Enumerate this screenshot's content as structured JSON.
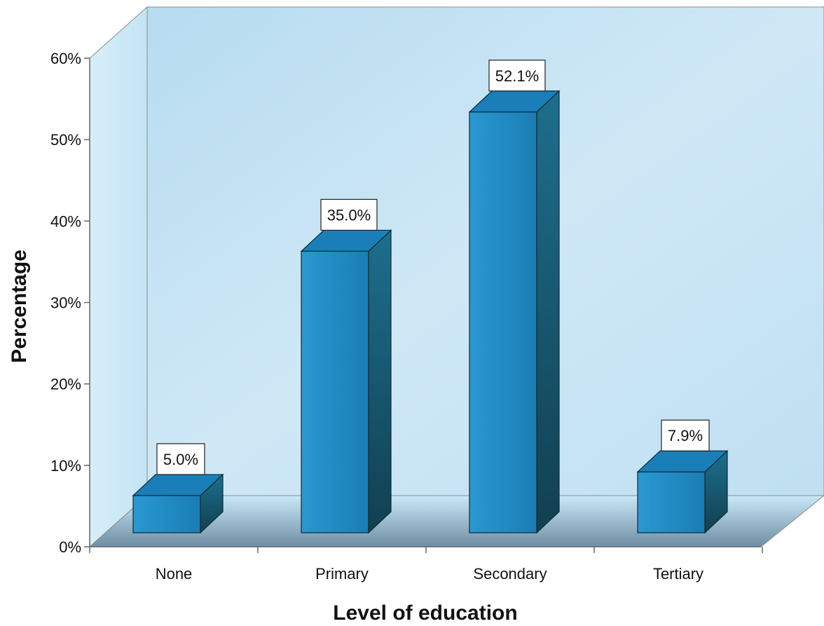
{
  "chart_data": {
    "type": "bar",
    "categories": [
      "None",
      "Primary",
      "Secondary",
      "Tertiary"
    ],
    "values": [
      5.0,
      35.0,
      52.1,
      7.9
    ],
    "data_labels": [
      "5.0%",
      "35.0%",
      "52.1%",
      "7.9%"
    ],
    "xlabel": "Level of education",
    "ylabel": "Percentage",
    "ylim": [
      0,
      60
    ],
    "yticks": [
      "0%",
      "10%",
      "20%",
      "30%",
      "40%",
      "50%",
      "60%"
    ],
    "grid": false,
    "legend": "none",
    "colors": {
      "bar_front": "#1f8bc6",
      "bar_top": "#1a7fb8",
      "bar_side": "#175a74",
      "wall": "#c6e3f3",
      "floor": "#8fc8e6",
      "label_box": "#ffffff"
    }
  }
}
